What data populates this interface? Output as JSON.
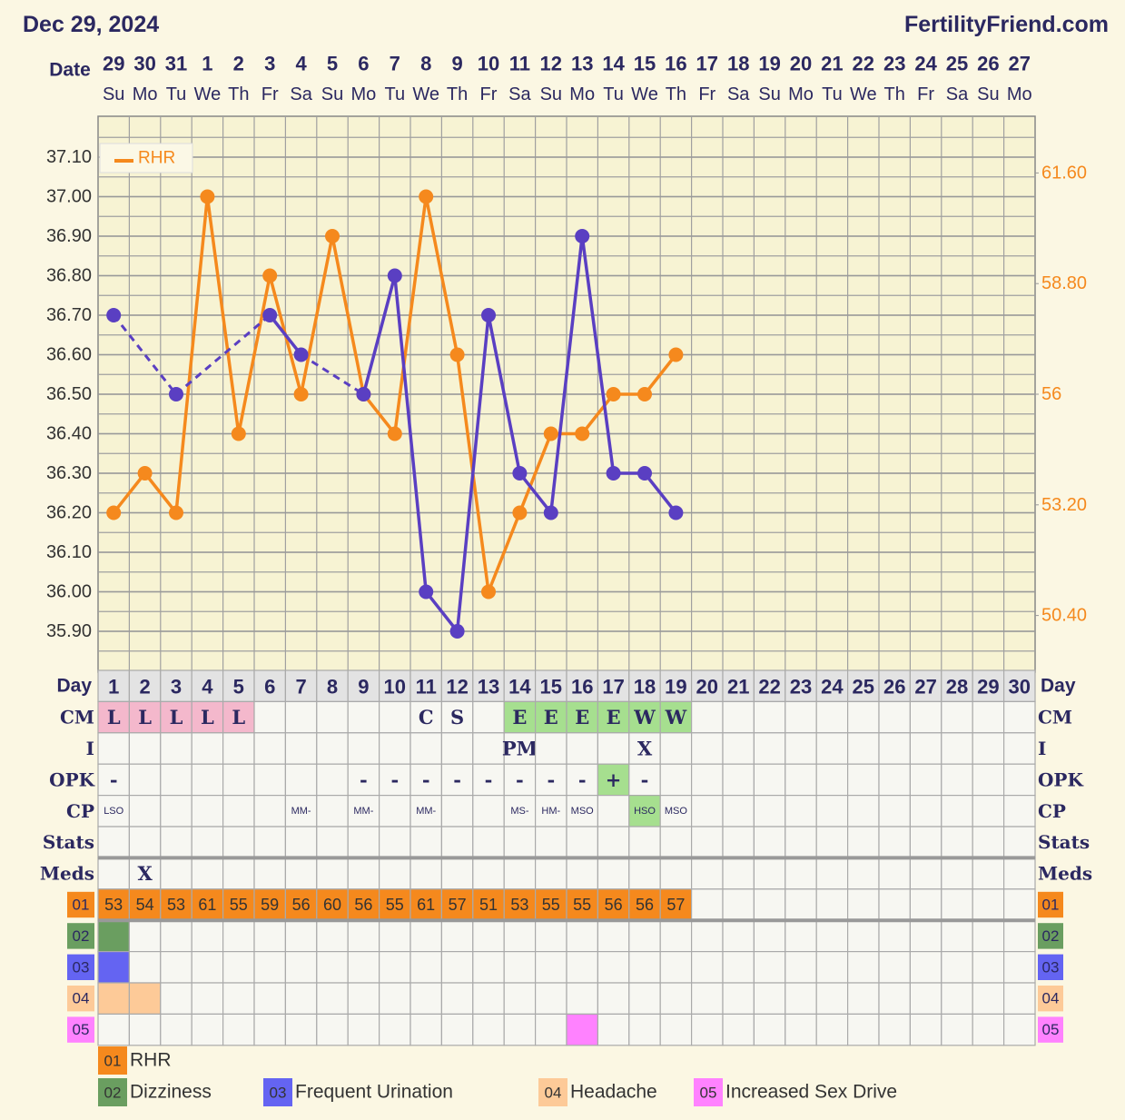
{
  "header": {
    "date": "Dec 29, 2024",
    "site": "FertilityFriend.com"
  },
  "chart_data": {
    "type": "line",
    "x_label": "Date",
    "categories": [
      "29",
      "30",
      "31",
      "1",
      "2",
      "3",
      "4",
      "5",
      "6",
      "7",
      "8",
      "9",
      "10",
      "11",
      "12",
      "13",
      "14",
      "15",
      "16",
      "17",
      "18",
      "19",
      "20",
      "21",
      "22",
      "23",
      "24",
      "25",
      "26",
      "27"
    ],
    "weekdays": [
      "Su",
      "Mo",
      "Tu",
      "We",
      "Th",
      "Fr",
      "Sa",
      "Su",
      "Mo",
      "Tu",
      "We",
      "Th",
      "Fr",
      "Sa",
      "Su",
      "Mo",
      "Tu",
      "We",
      "Th",
      "Fr",
      "Sa",
      "Su",
      "Mo",
      "Tu",
      "We",
      "Th",
      "Fr",
      "Sa",
      "Su",
      "Mo"
    ],
    "ylim": [
      35.8,
      37.2
    ],
    "yticks": [
      {
        "value": 35.9,
        "label": "35.90"
      },
      {
        "value": 36.0,
        "label": "36.00"
      },
      {
        "value": 36.1,
        "label": "36.10"
      },
      {
        "value": 36.2,
        "label": "36.20"
      },
      {
        "value": 36.3,
        "label": "36.30"
      },
      {
        "value": 36.4,
        "label": "36.40"
      },
      {
        "value": 36.5,
        "label": "36.50"
      },
      {
        "value": 36.6,
        "label": "36.60"
      },
      {
        "value": 36.7,
        "label": "36.70"
      },
      {
        "value": 36.8,
        "label": "36.80"
      },
      {
        "value": 36.9,
        "label": "36.90"
      },
      {
        "value": 37.0,
        "label": "37.00"
      },
      {
        "value": 37.1,
        "label": "37.10"
      }
    ],
    "y2lim": [
      49,
      63
    ],
    "y2ticks": [
      {
        "value": 50.4,
        "label": "50.40"
      },
      {
        "value": 53.2,
        "label": "53.20"
      },
      56,
      {
        "value": 58.8,
        "label": "58.80"
      },
      {
        "value": 61.6,
        "label": "61.60"
      }
    ],
    "grid": true,
    "legend": "upper left",
    "series": [
      {
        "color": "#5a3fc2",
        "gap_style": "dashed",
        "values": [
          36.7,
          null,
          36.5,
          null,
          null,
          36.7,
          36.6,
          null,
          36.5,
          36.8,
          36.0,
          35.9,
          36.7,
          36.3,
          36.2,
          36.9,
          36.3,
          36.3,
          36.2,
          null,
          null,
          null,
          null,
          null,
          null,
          null,
          null,
          null,
          null,
          null
        ]
      },
      {
        "name": "RHR",
        "color": "#f5891d",
        "axis": "y2",
        "values": [
          53,
          54,
          53,
          61,
          55,
          59,
          56,
          60,
          56,
          55,
          61,
          57,
          51,
          53,
          55,
          55,
          56,
          56,
          57,
          null,
          null,
          null,
          null,
          null,
          null,
          null,
          null,
          null,
          null,
          null
        ]
      }
    ]
  },
  "table": {
    "day_label": "Day",
    "days": [
      1,
      2,
      3,
      4,
      5,
      6,
      7,
      8,
      9,
      10,
      11,
      12,
      13,
      14,
      15,
      16,
      17,
      18,
      19,
      20,
      21,
      22,
      23,
      24,
      25,
      26,
      27,
      28,
      29,
      30
    ],
    "rows": [
      {
        "label": "CM",
        "cells": [
          "L",
          "L",
          "L",
          "L",
          "L",
          null,
          null,
          null,
          null,
          null,
          "C",
          "S",
          null,
          "E",
          "E",
          "E",
          "E",
          "W",
          "W",
          null,
          null,
          null,
          null,
          null,
          null,
          null,
          null,
          null,
          null,
          null
        ]
      },
      {
        "label": "I",
        "cells": [
          null,
          null,
          null,
          null,
          null,
          null,
          null,
          null,
          null,
          null,
          null,
          null,
          null,
          "PM",
          null,
          null,
          null,
          "X",
          null,
          null,
          null,
          null,
          null,
          null,
          null,
          null,
          null,
          null,
          null,
          null
        ]
      },
      {
        "label": "OPK",
        "cells": [
          "-",
          null,
          null,
          null,
          null,
          null,
          null,
          null,
          "-",
          "-",
          "-",
          "-",
          "-",
          "-",
          "-",
          "-",
          "+",
          "-",
          null,
          null,
          null,
          null,
          null,
          null,
          null,
          null,
          null,
          null,
          null,
          null
        ]
      },
      {
        "label": "CP",
        "cells": [
          "LSO",
          null,
          null,
          null,
          null,
          null,
          "MM-",
          null,
          "MM-",
          null,
          "MM-",
          null,
          null,
          "MS-",
          "HM-",
          "MSO",
          null,
          "HSO",
          "MSO",
          null,
          null,
          null,
          null,
          null,
          null,
          null,
          null,
          null,
          null,
          null
        ]
      },
      {
        "label": "Stats",
        "cells": [
          null,
          null,
          null,
          null,
          null,
          null,
          null,
          null,
          null,
          null,
          null,
          null,
          null,
          null,
          null,
          null,
          null,
          null,
          null,
          null,
          null,
          null,
          null,
          null,
          null,
          null,
          null,
          null,
          null,
          null
        ]
      },
      {
        "label": "Meds",
        "cells": [
          null,
          "X",
          null,
          null,
          null,
          null,
          null,
          null,
          null,
          null,
          null,
          null,
          null,
          null,
          null,
          null,
          null,
          null,
          null,
          null,
          null,
          null,
          null,
          null,
          null,
          null,
          null,
          null,
          null,
          null
        ]
      }
    ],
    "highlights": {
      "L": "#f4b8cc",
      "E": "#a6df8f",
      "W": "#a6df8f",
      "+": "#a6df8f",
      "HSO": "#a6df8f"
    },
    "symptoms": [
      {
        "code": "01",
        "name": "RHR",
        "color": "#f5891d"
      },
      {
        "code": "02",
        "name": "Dizziness",
        "color": "#6a9e60",
        "days": [
          1
        ]
      },
      {
        "code": "03",
        "name": "Frequent Urination",
        "color": "#6464f2",
        "days": [
          1
        ]
      },
      {
        "code": "04",
        "name": "Headache",
        "color": "#fdca98",
        "days": [
          1,
          2
        ]
      },
      {
        "code": "05",
        "name": "Increased Sex Drive",
        "color": "#ff82ff",
        "days": [
          16
        ]
      }
    ]
  }
}
